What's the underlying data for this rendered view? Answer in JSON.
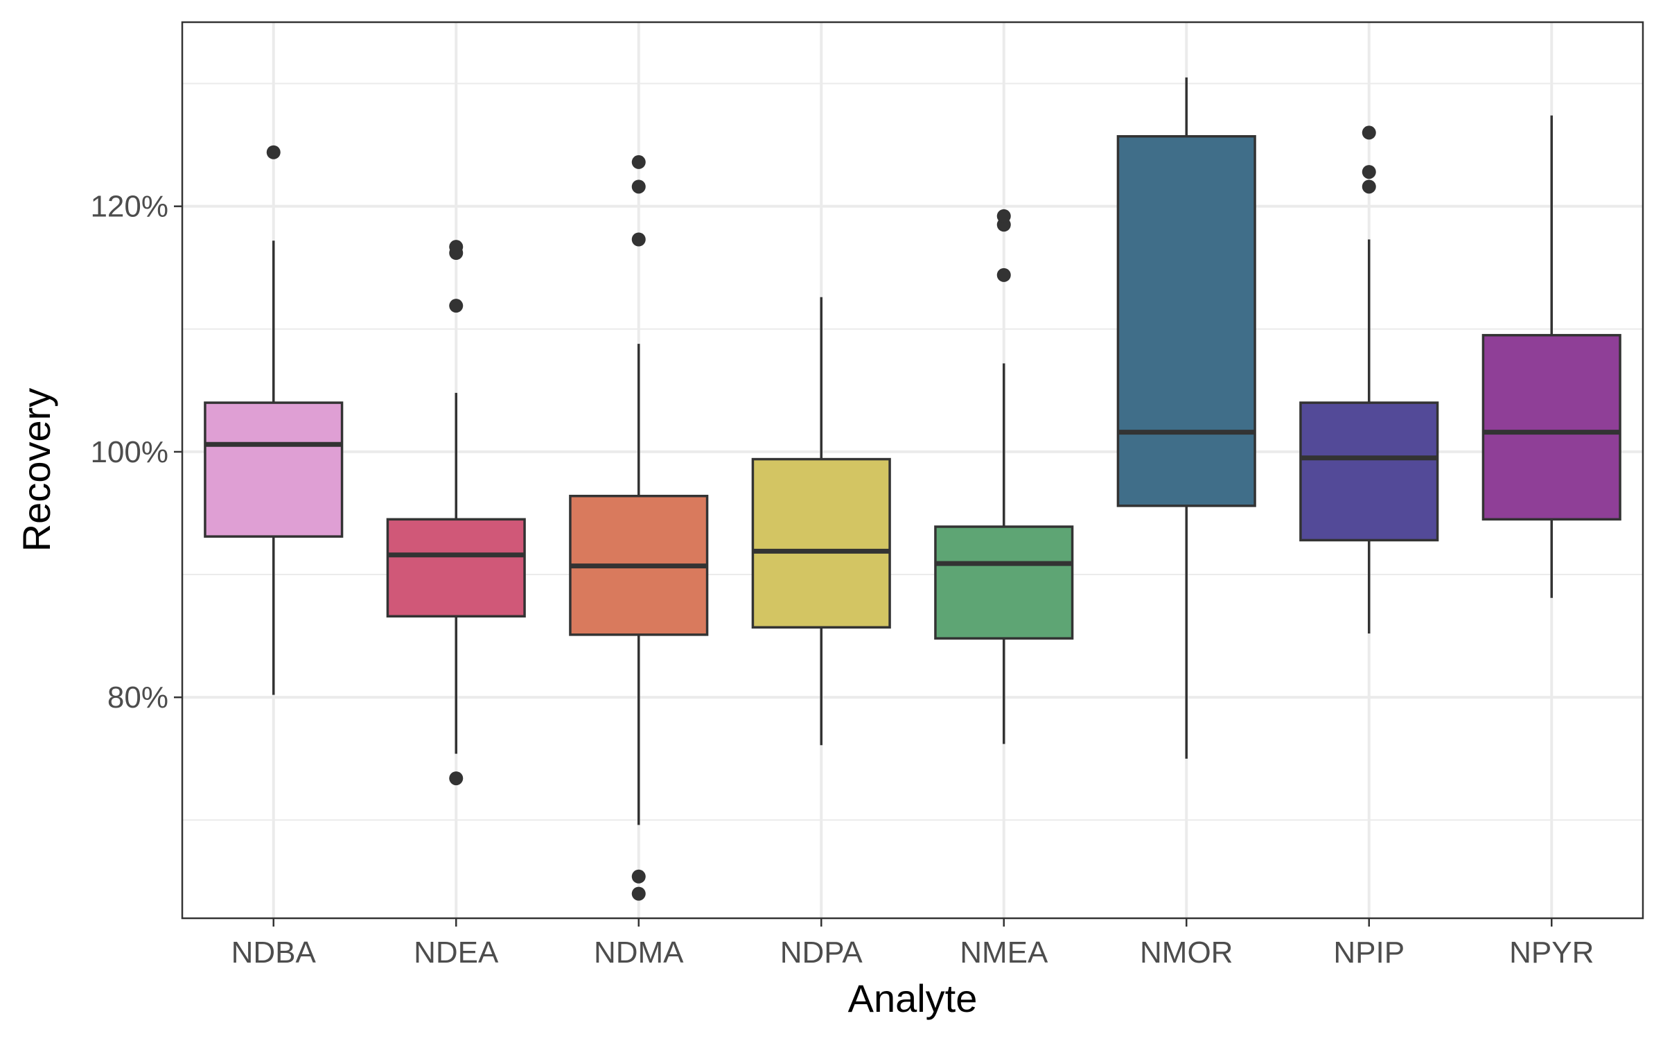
{
  "chart_data": {
    "type": "box",
    "xlabel": "Analyte",
    "ylabel": "Recovery",
    "ylim": [
      62,
      135
    ],
    "y_ticks": [
      80,
      100,
      120
    ],
    "y_minor_ticks": [
      70,
      90,
      110,
      130
    ],
    "y_tick_format": "percent",
    "grid": true,
    "categories": [
      "NDBA",
      "NDEA",
      "NDMA",
      "NDPA",
      "NMEA",
      "NMOR",
      "NPIP",
      "NPYR"
    ],
    "boxes": [
      {
        "category": "NDBA",
        "color": "#df9fd4",
        "whisker_low": 80.2,
        "q1": 93.1,
        "median": 100.6,
        "q3": 104.0,
        "whisker_high": 117.2,
        "outliers": [
          124.4
        ]
      },
      {
        "category": "NDEA",
        "color": "#d05878",
        "whisker_low": 75.4,
        "q1": 86.6,
        "median": 91.6,
        "q3": 94.5,
        "whisker_high": 104.8,
        "outliers": [
          73.4,
          111.9,
          116.2,
          116.7
        ]
      },
      {
        "category": "NDMA",
        "color": "#d97a5d",
        "whisker_low": 69.6,
        "q1": 85.1,
        "median": 90.7,
        "q3": 96.4,
        "whisker_high": 108.8,
        "outliers": [
          65.4,
          64.0,
          117.3,
          121.6,
          123.6
        ]
      },
      {
        "category": "NDPA",
        "color": "#d3c563",
        "whisker_low": 76.1,
        "q1": 85.7,
        "median": 91.9,
        "q3": 99.4,
        "whisker_high": 112.6,
        "outliers": []
      },
      {
        "category": "NMEA",
        "color": "#5ea574",
        "whisker_low": 76.2,
        "q1": 84.8,
        "median": 90.9,
        "q3": 93.9,
        "whisker_high": 107.2,
        "outliers": [
          114.4,
          118.5,
          119.2
        ]
      },
      {
        "category": "NMOR",
        "color": "#406e89",
        "whisker_low": 75.0,
        "q1": 95.6,
        "median": 101.6,
        "q3": 125.7,
        "whisker_high": 130.5,
        "outliers": []
      },
      {
        "category": "NPIP",
        "color": "#534a98",
        "whisker_low": 85.2,
        "q1": 92.8,
        "median": 99.5,
        "q3": 104.0,
        "whisker_high": 117.3,
        "outliers": [
          121.6,
          122.8,
          126.0
        ]
      },
      {
        "category": "NPYR",
        "color": "#8f3f97",
        "whisker_low": 88.1,
        "q1": 94.5,
        "median": 101.6,
        "q3": 109.5,
        "whisker_high": 127.4,
        "outliers": []
      }
    ]
  }
}
